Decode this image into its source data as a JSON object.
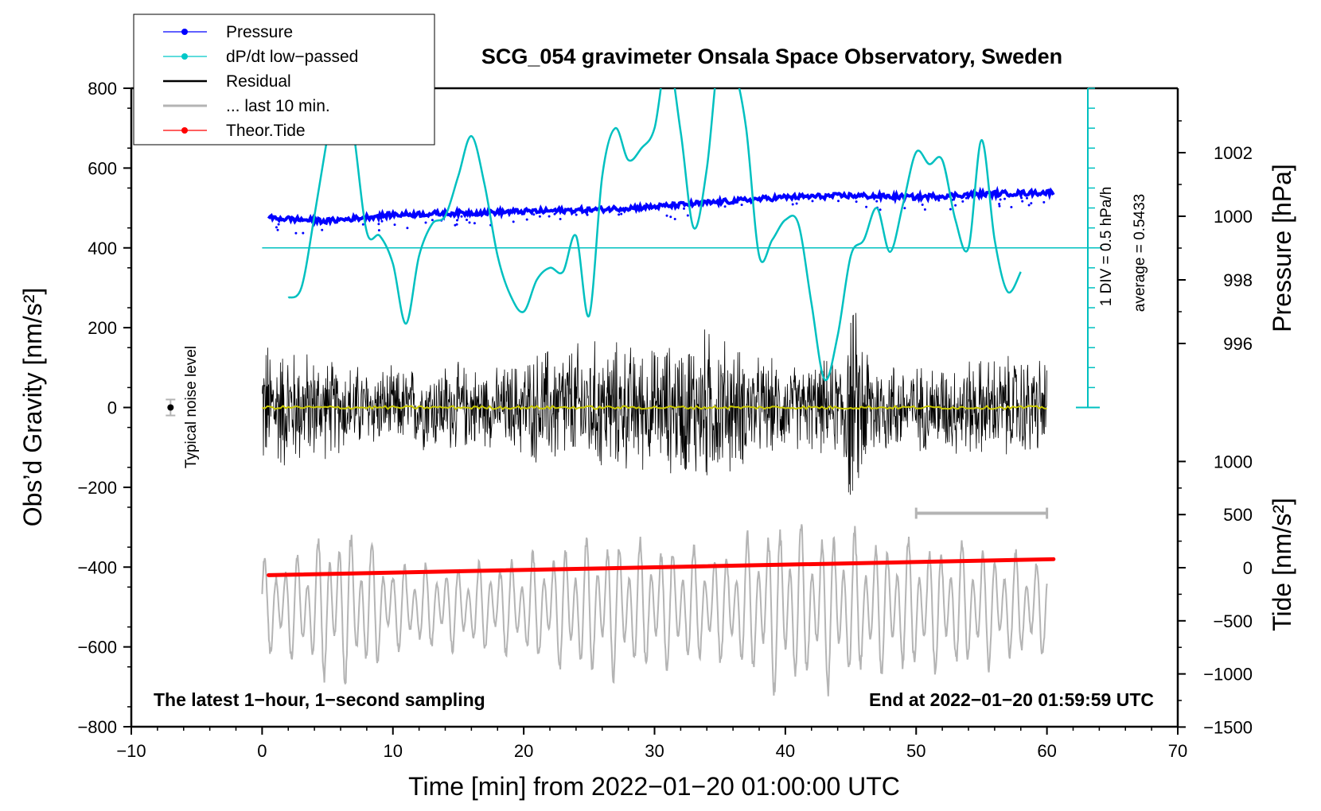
{
  "chart_data": {
    "type": "line",
    "title": "SCG_054 gravimeter Onsala Space Observatory, Sweden",
    "xlabel": "Time [min] from 2022−01−20 01:00:00 UTC",
    "ylabel_left": "Obs’d Gravity [nm/s²]",
    "ylabel_right_top": "Pressure [hPa]",
    "ylabel_right_bottom": "Tide [nm/s²]",
    "xlim": [
      -10,
      70
    ],
    "ylim_left": [
      -800,
      800
    ],
    "x_ticks": [
      "−10",
      "0",
      "10",
      "20",
      "30",
      "40",
      "50",
      "60",
      "70"
    ],
    "y_ticks_left": [
      "800",
      "600",
      "400",
      "200",
      "0",
      "−200",
      "−400",
      "−600",
      "−800"
    ],
    "pressure_axis": {
      "ticks": [
        "1002",
        "1000",
        "998",
        "996"
      ]
    },
    "tide_axis": {
      "ticks": [
        "1000",
        "500",
        "0",
        "−500",
        "−1000",
        "−1500"
      ]
    },
    "legend": [
      {
        "label": "Pressure",
        "color": "#0000ff",
        "marker": "dot"
      },
      {
        "label": "dP/dt low−passed",
        "color": "#00c8c8",
        "marker": "dot"
      },
      {
        "label": "Residual",
        "color": "#000000",
        "marker": "none"
      },
      {
        "label": "... last 10 min.",
        "color": "#b4b4b4",
        "marker": "none"
      },
      {
        "label": "Theor.Tide",
        "color": "#ff0000",
        "marker": "dot"
      }
    ],
    "noise_label": "Typical noise level",
    "noise_level": {
      "x": -7,
      "y": 0,
      "err": 20
    },
    "dpdt_scale_label": "1 DIV = 0.5 hPa/h",
    "dpdt_average_label": "average = 0.5433",
    "dpdt_zero_level": 400,
    "last10_bar": {
      "x_start": 50,
      "x_end": 60,
      "y": -265
    },
    "note_left": "The latest 1−hour, 1−second sampling",
    "note_right": "End at 2022−01−20 01:59:59 UTC",
    "series": [
      {
        "name": "Pressure",
        "unit": "hPa",
        "x": [
          0.5,
          5,
          10,
          15,
          20,
          25,
          30,
          35,
          40,
          45,
          50,
          55,
          60.5
        ],
        "values": [
          999.95,
          999.85,
          1000.05,
          1000.1,
          1000.15,
          1000.2,
          1000.3,
          1000.45,
          1000.6,
          1000.65,
          1000.6,
          1000.7,
          1000.75
        ]
      },
      {
        "name": "dP/dt low−passed",
        "unit": "gravity-axis units",
        "x": [
          2,
          3,
          4,
          5,
          6,
          7,
          8,
          9,
          10,
          11,
          12,
          13,
          14,
          15,
          16,
          17,
          18,
          19,
          20,
          21,
          22,
          23,
          24,
          25,
          26,
          27,
          28,
          29,
          30,
          31,
          32,
          33,
          34,
          35,
          36,
          37,
          38,
          39,
          40,
          41,
          42,
          43,
          44,
          45,
          46,
          47,
          48,
          49,
          50,
          51,
          52,
          53,
          54,
          55,
          56,
          57,
          58
        ],
        "values": [
          275,
          300,
          480,
          680,
          900,
          690,
          440,
          430,
          360,
          210,
          380,
          460,
          480,
          580,
          680,
          560,
          380,
          280,
          240,
          320,
          350,
          340,
          430,
          230,
          580,
          700,
          620,
          650,
          700,
          880,
          690,
          450,
          600,
          900,
          860,
          700,
          380,
          420,
          470,
          460,
          260,
          70,
          180,
          380,
          420,
          500,
          390,
          510,
          640,
          610,
          620,
          470,
          400,
          670,
          420,
          290,
          340
        ]
      },
      {
        "name": "Residual",
        "unit": "nm/s²",
        "x_range": [
          0,
          60
        ],
        "envelope_x": [
          0,
          2,
          5,
          8,
          10,
          14,
          18,
          22,
          26,
          30,
          34,
          38,
          41,
          44,
          45,
          47,
          50,
          54,
          58,
          60
        ],
        "envelope": [
          200,
          180,
          140,
          120,
          110,
          130,
          110,
          180,
          190,
          170,
          230,
          140,
          120,
          140,
          300,
          150,
          120,
          140,
          150,
          140
        ]
      },
      {
        "name": "Theor.Tide",
        "unit": "nm/s²",
        "x": [
          0.5,
          60.5
        ],
        "values": [
          -70,
          80
        ]
      },
      {
        "name": "... last 10 min.",
        "unit": "nm/s²",
        "x_range": [
          0,
          60
        ],
        "center": -500,
        "envelope_x": [
          0,
          3,
          5,
          8,
          10,
          15,
          20,
          25,
          30,
          35,
          40,
          42,
          44,
          46,
          50,
          55,
          60
        ],
        "envelope": [
          120,
          140,
          200,
          190,
          110,
          110,
          130,
          180,
          170,
          140,
          230,
          200,
          210,
          180,
          170,
          160,
          120
        ]
      }
    ]
  }
}
